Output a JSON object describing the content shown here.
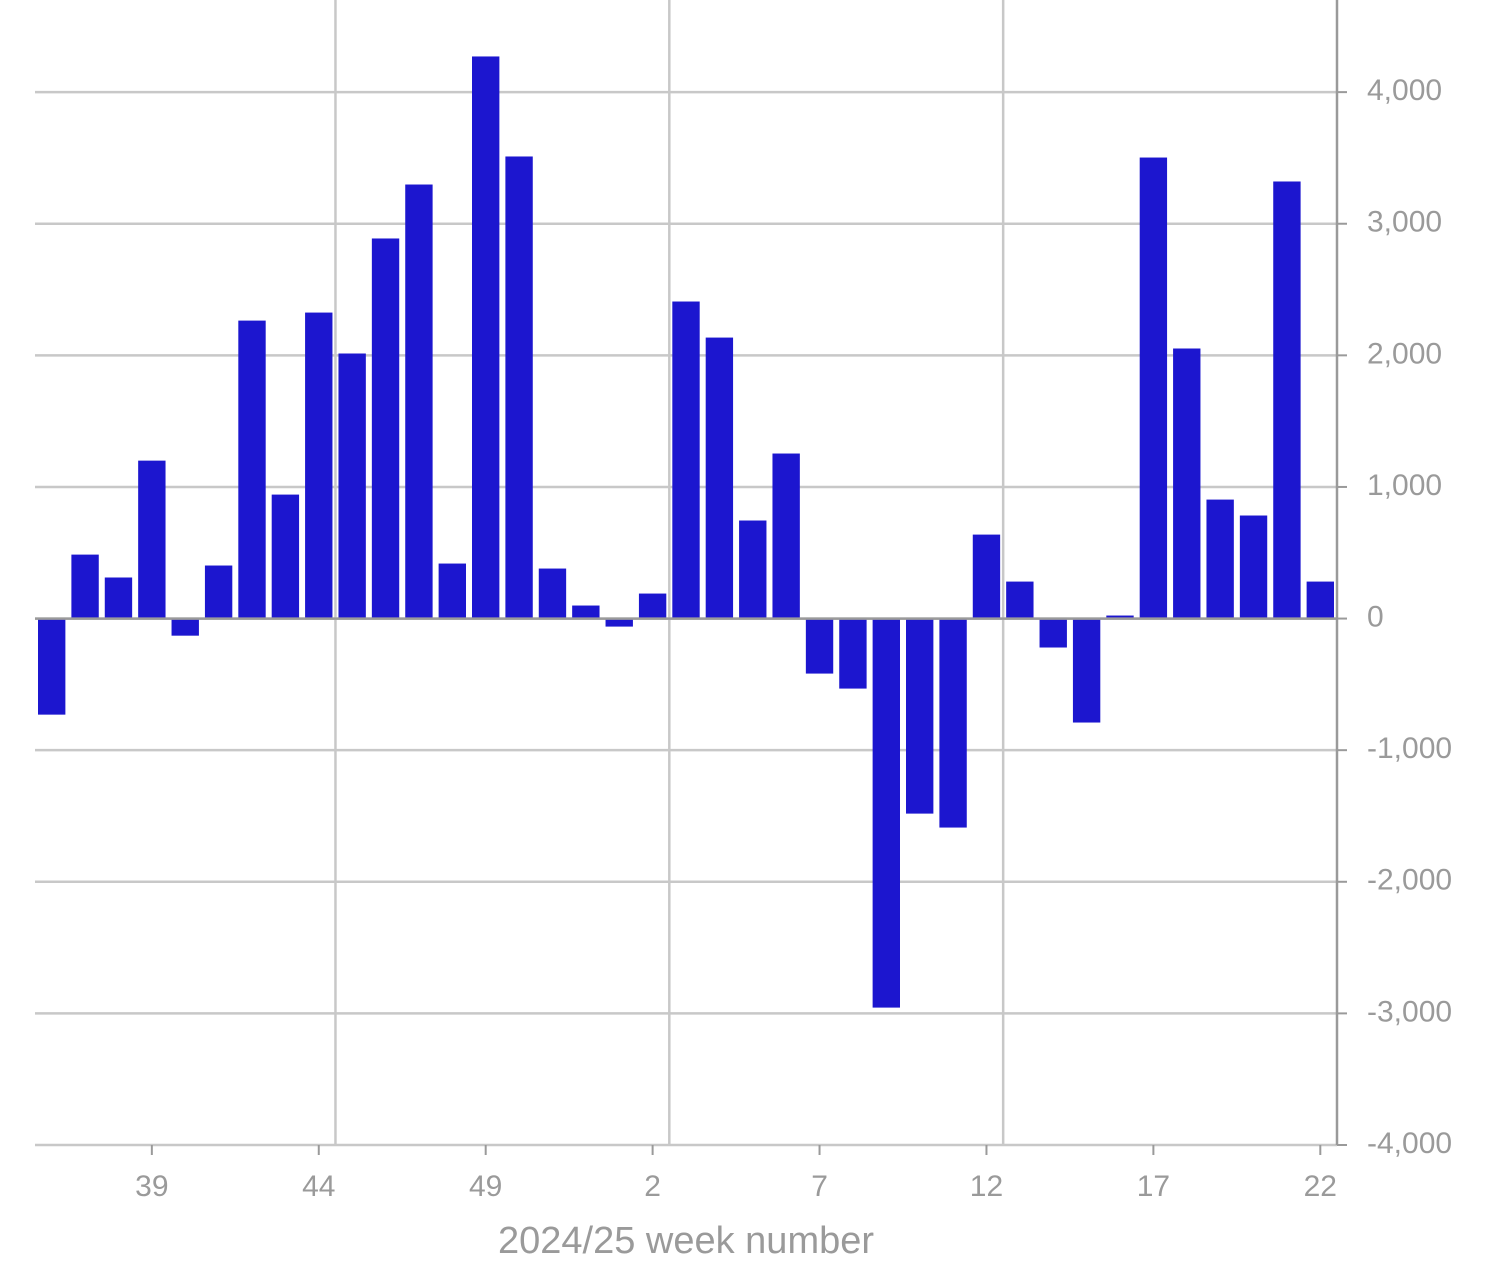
{
  "chart_data": {
    "type": "bar",
    "x_label": "2024/25 week number",
    "categories": [
      null,
      null,
      null,
      "39",
      null,
      null,
      null,
      null,
      "44",
      null,
      null,
      null,
      null,
      "49",
      null,
      null,
      null,
      null,
      "2",
      null,
      null,
      null,
      null,
      "7",
      null,
      null,
      null,
      null,
      "12",
      null,
      null,
      null,
      null,
      "17",
      null,
      null,
      null,
      null,
      "22"
    ],
    "values": [
      -730,
      486,
      312,
      1200,
      -130,
      403,
      2264,
      942,
      2325,
      2014,
      2888,
      3298,
      418,
      4271,
      3511,
      380,
      99,
      -61,
      190,
      2409,
      2135,
      745,
      1254,
      -418,
      -532,
      -2956,
      -1482,
      -1588,
      638,
      281,
      -220,
      -790,
      23,
      3503,
      2052,
      904,
      783,
      3321,
      281
    ],
    "color": "#1c16cf",
    "ylim": [
      -4000,
      4700
    ],
    "yticks": [
      {
        "value": -4000,
        "label": "-4,000"
      },
      {
        "value": -3000,
        "label": "-3,000"
      },
      {
        "value": -2000,
        "label": "-2,000"
      },
      {
        "value": -1000,
        "label": "-1,000"
      },
      0,
      {
        "value": 1000,
        "label": "1,000"
      },
      {
        "value": 2000,
        "label": "2,000"
      },
      {
        "value": 3000,
        "label": "3,000"
      },
      {
        "value": 4000,
        "label": "4,000"
      }
    ],
    "grid": true
  }
}
